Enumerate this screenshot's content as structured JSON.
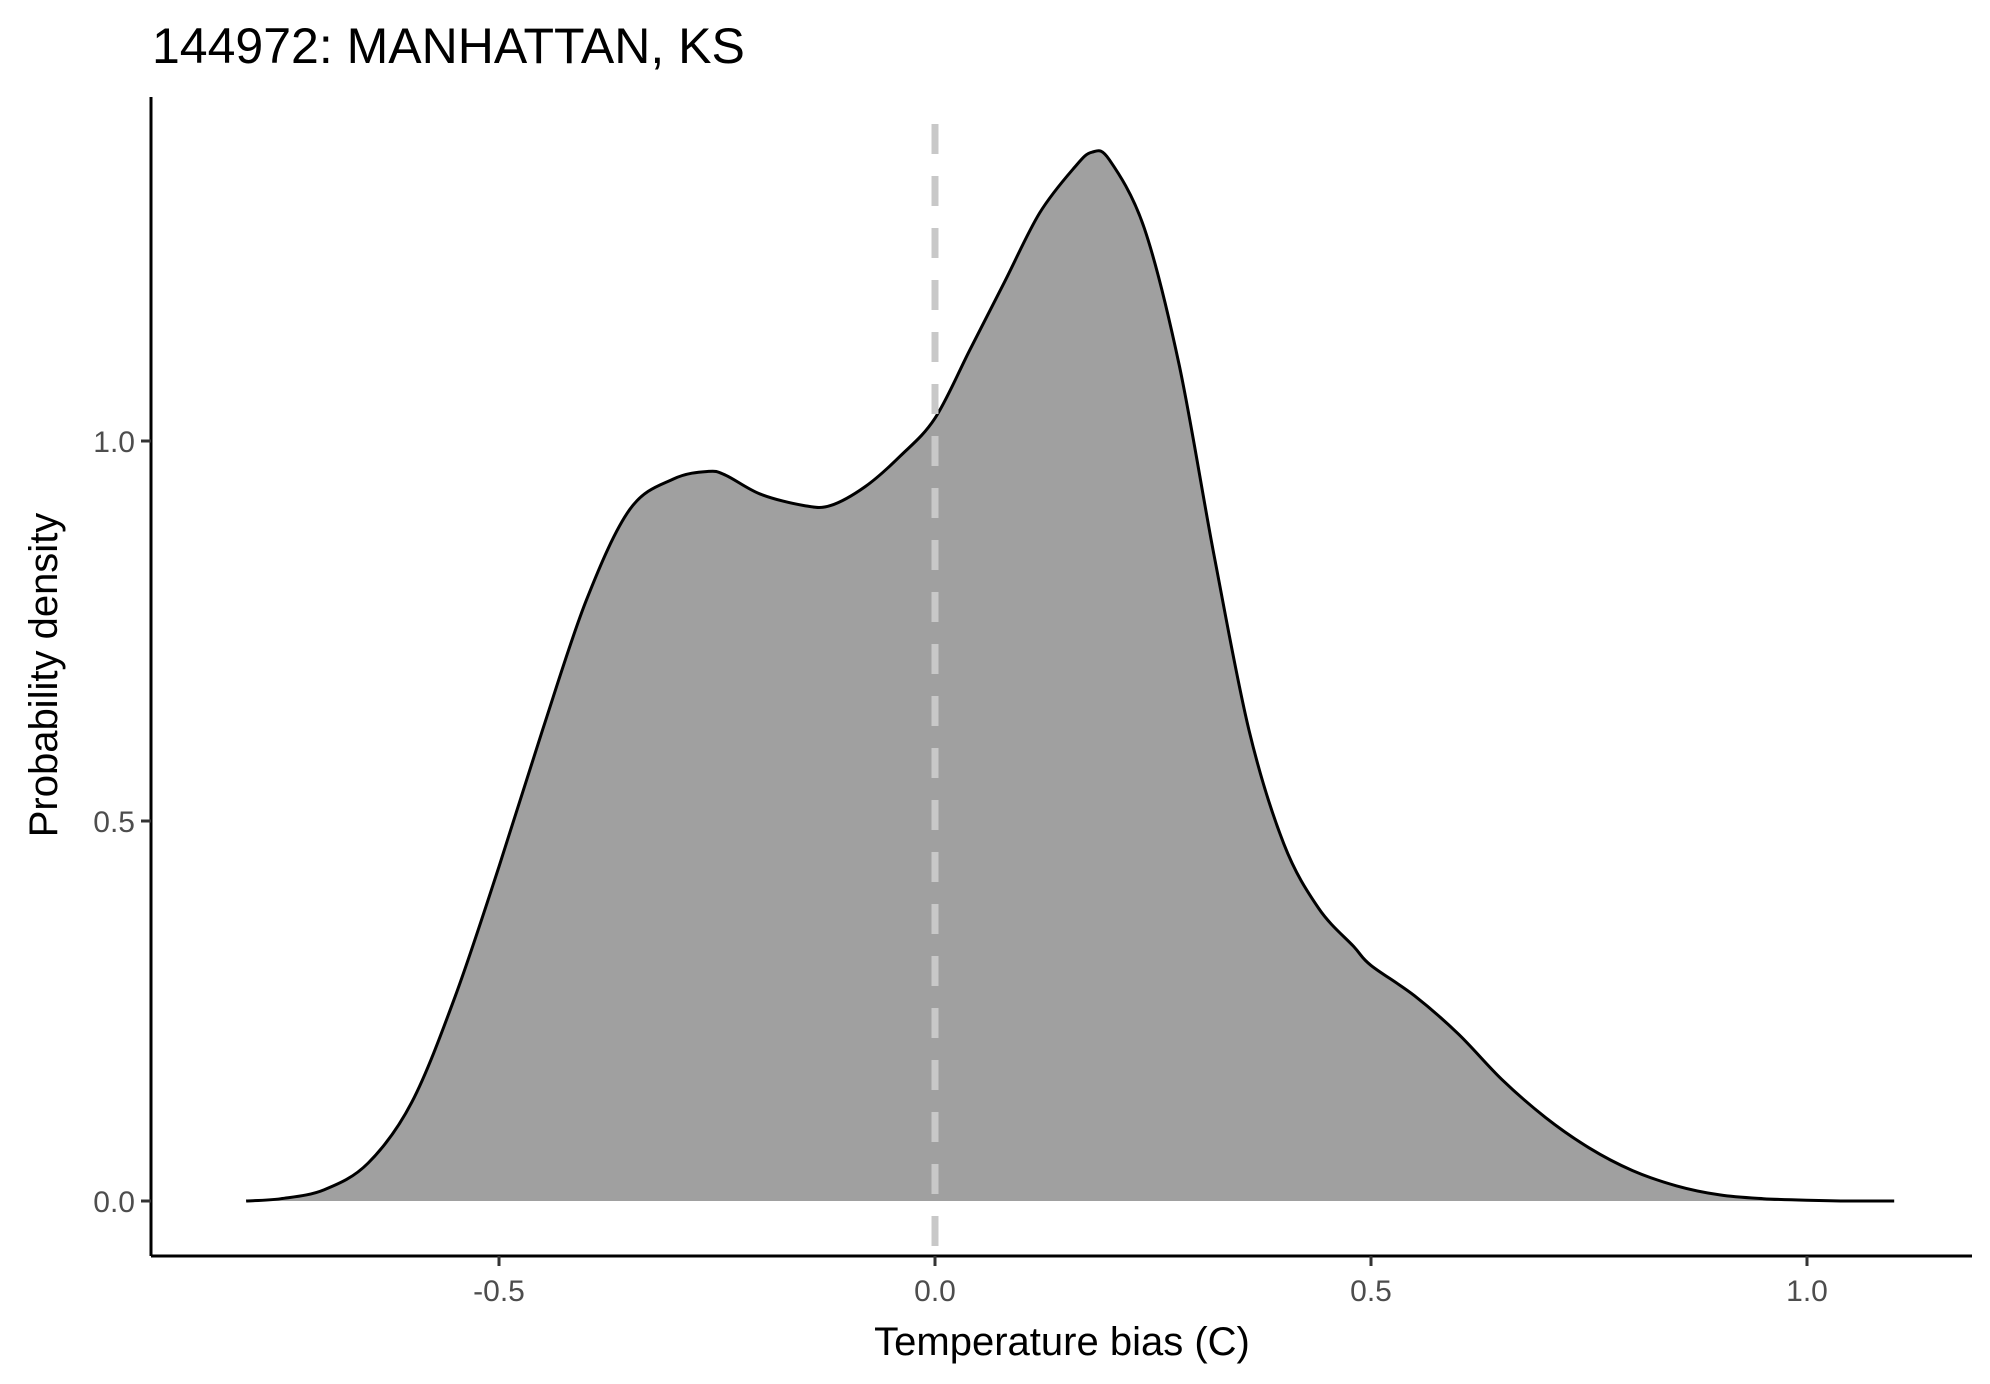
{
  "chart_data": {
    "type": "area",
    "title": "144972: MANHATTAN, KS",
    "xlabel": "Temperature bias (C)",
    "ylabel": "Probability density",
    "xlim": [
      -0.86,
      1.19
    ],
    "ylim": [
      -0.07,
      1.45
    ],
    "x_ticks": [
      {
        "value": -0.5,
        "label": "-0.5"
      },
      {
        "value": 0.0,
        "label": "0.0"
      },
      {
        "value": 0.5,
        "label": "0.5"
      },
      {
        "value": 1.0,
        "label": "1.0"
      }
    ],
    "y_ticks": [
      {
        "value": 0.0,
        "label": "0.0"
      },
      {
        "value": 0.5,
        "label": "0.5"
      },
      {
        "value": 1.0,
        "label": "1.0"
      }
    ],
    "reference_line": {
      "x": 0.0,
      "style": "dashed",
      "color": "#c8c8c8"
    },
    "fill_color": "#a0a0a0",
    "line_color": "#000000",
    "grid": false,
    "series": [
      {
        "x": [
          -0.79,
          -0.75,
          -0.7,
          -0.65,
          -0.6,
          -0.55,
          -0.5,
          -0.45,
          -0.4,
          -0.35,
          -0.3,
          -0.26,
          -0.24,
          -0.2,
          -0.15,
          -0.12,
          -0.08,
          -0.04,
          0.0,
          0.04,
          0.08,
          0.12,
          0.16,
          0.18,
          0.2,
          0.24,
          0.28,
          0.32,
          0.36,
          0.4,
          0.44,
          0.48,
          0.5,
          0.55,
          0.6,
          0.65,
          0.7,
          0.75,
          0.8,
          0.85,
          0.9,
          0.95,
          1.0,
          1.05,
          1.1
        ],
        "y": [
          0.0,
          0.003,
          0.015,
          0.05,
          0.13,
          0.27,
          0.44,
          0.62,
          0.79,
          0.91,
          0.95,
          0.96,
          0.955,
          0.93,
          0.915,
          0.915,
          0.94,
          0.98,
          1.03,
          1.12,
          1.21,
          1.3,
          1.36,
          1.38,
          1.37,
          1.28,
          1.1,
          0.85,
          0.62,
          0.47,
          0.385,
          0.335,
          0.31,
          0.27,
          0.22,
          0.16,
          0.11,
          0.07,
          0.04,
          0.02,
          0.008,
          0.003,
          0.001,
          0.0,
          0.0
        ]
      }
    ]
  }
}
